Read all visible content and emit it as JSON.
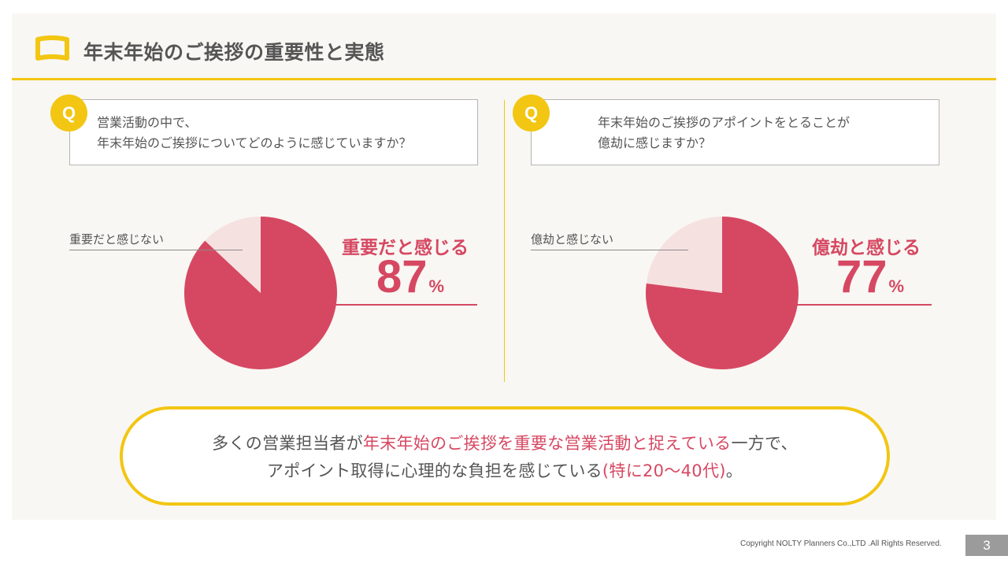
{
  "header": {
    "title": "年末年始のご挨拶の重要性と実態",
    "icon": "book-icon",
    "accent_color": "#f2c612"
  },
  "questions": [
    {
      "badge": "Q",
      "line1": "営業活動の中で、",
      "line2": "年末年始のご挨拶についてどのように感じていますか？"
    },
    {
      "badge": "Q",
      "line1": "年末年始のご挨拶のアポイントをとることが",
      "line2": "億劫に感じますか？"
    }
  ],
  "chart_data": [
    {
      "type": "pie",
      "slices": [
        {
          "label": "重要だと感じる",
          "value": 87,
          "color": "#d64862"
        },
        {
          "label": "重要だと感じない",
          "value": 13,
          "color": "#f6e1e1"
        }
      ],
      "major_label": "重要だと感じる",
      "major_value": "87",
      "unit": "%",
      "minor_label": "重要だと感じない"
    },
    {
      "type": "pie",
      "slices": [
        {
          "label": "億劫と感じる",
          "value": 77,
          "color": "#d64862"
        },
        {
          "label": "億劫と感じない",
          "value": 23,
          "color": "#f6e1e1"
        }
      ],
      "major_label": "億劫と感じる",
      "major_value": "77",
      "unit": "%",
      "minor_label": "億劫と感じない"
    }
  ],
  "summary": {
    "line1_a": "多くの営業担当者が",
    "line1_b": "年末年始のご挨拶を重要な営業活動と捉えている",
    "line1_c": "一方で、",
    "line2_a": "アポイント取得に心理的な負担を感じている",
    "line2_b": "(特に20～40代)",
    "line2_c": "。",
    "highlight_color": "#d64862"
  },
  "footer": {
    "copyright": "Copyright NOLTY Planners Co.,LTD .All Rights Reserved.",
    "page_number": "3"
  }
}
